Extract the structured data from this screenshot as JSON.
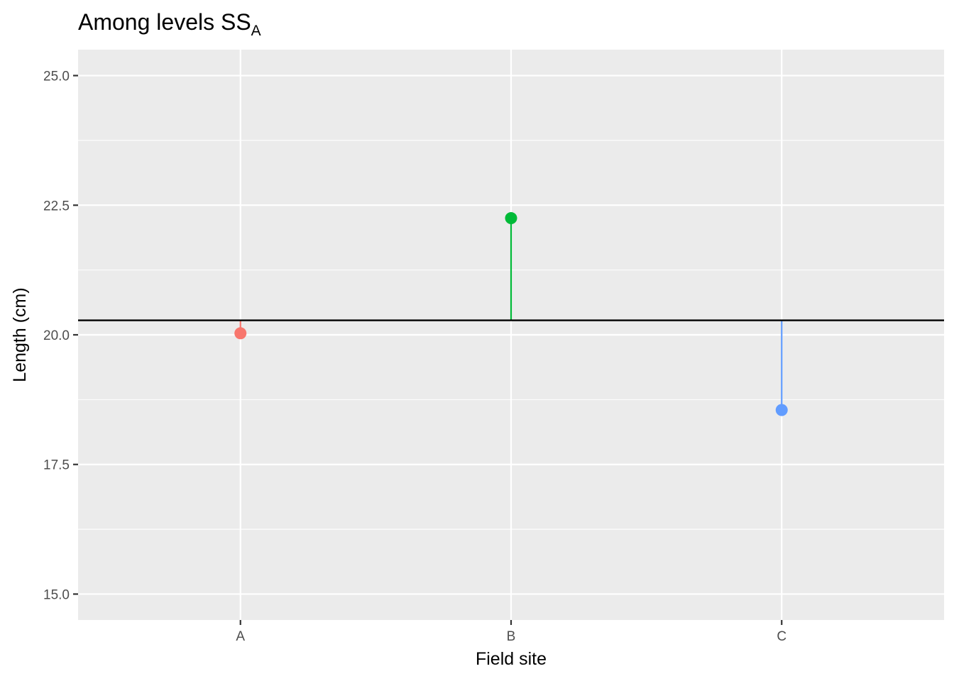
{
  "chart_data": {
    "type": "scatter",
    "title": "Among levels SS",
    "title_subscript": "A",
    "xlabel": "Field site",
    "ylabel": "Length (cm)",
    "categories": [
      "A",
      "B",
      "C"
    ],
    "group_means": [
      20.03,
      22.25,
      18.55
    ],
    "grand_mean": 20.28,
    "series_colors": [
      "#F8766D",
      "#00BA38",
      "#619CFF"
    ],
    "ylim": [
      14.5,
      25.5
    ],
    "yticks": [
      15.0,
      17.5,
      20.0,
      22.5,
      25.0
    ],
    "ytick_labels": [
      "15.0",
      "17.5",
      "20.0",
      "22.5",
      "25.0"
    ],
    "grid": true,
    "panel_background": "#EBEBEB",
    "reference_line_color": "#000000"
  }
}
